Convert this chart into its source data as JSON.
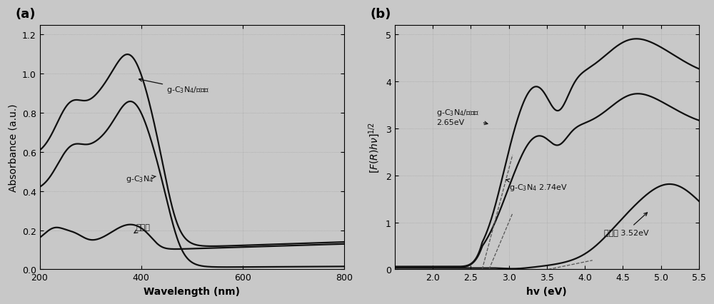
{
  "fig_width": 10.0,
  "fig_height": 4.27,
  "bg_color": "#c8c8c8",
  "panel_a": {
    "xlabel": "Wavelength (nm)",
    "ylabel": "Absorbance (a.u.)",
    "xlim": [
      200,
      800
    ],
    "ylim": [
      0.0,
      1.25
    ],
    "yticks": [
      0.0,
      0.2,
      0.4,
      0.6,
      0.8,
      1.0,
      1.2
    ],
    "xticks": [
      200,
      400,
      600,
      800
    ],
    "label": "(a)"
  },
  "panel_b": {
    "xlabel": "hv (eV)",
    "ylabel": "[F(R)hv]$^{1/2}$",
    "xlim": [
      1.5,
      5.5
    ],
    "ylim": [
      0,
      5.2
    ],
    "yticks": [
      0,
      1,
      2,
      3,
      4,
      5
    ],
    "label": "(b)"
  },
  "line_color": "#111111",
  "line_width": 1.6
}
